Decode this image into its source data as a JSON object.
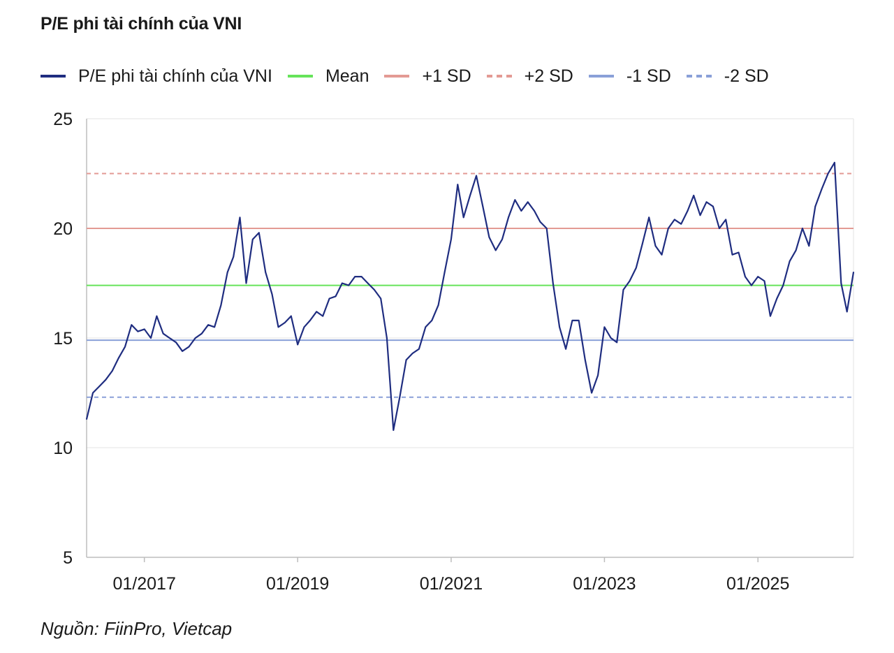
{
  "title": "P/E phi tài chính của VNI",
  "source": "Nguồn: FiinPro, Vietcap",
  "legend": [
    {
      "label": "P/E phi tài chính của VNI",
      "color": "#1f2d80",
      "style": "solid"
    },
    {
      "label": "Mean",
      "color": "#66e35a",
      "style": "solid"
    },
    {
      "label": "+1 SD",
      "color": "#e39a94",
      "style": "solid"
    },
    {
      "label": "+2 SD",
      "color": "#e39a94",
      "style": "dashed"
    },
    {
      "label": "-1 SD",
      "color": "#8aa0d8",
      "style": "solid"
    },
    {
      "label": "-2 SD",
      "color": "#8aa0d8",
      "style": "dashed"
    }
  ],
  "chart_data": {
    "type": "line",
    "title": "P/E phi tài chính của VNI",
    "ylim": [
      5,
      25
    ],
    "y_ticks": [
      5,
      10,
      15,
      20,
      25
    ],
    "xlim": [
      "2016-04",
      "2026-04"
    ],
    "x_ticks": [
      "01/2017",
      "01/2019",
      "01/2021",
      "01/2023",
      "01/2025"
    ],
    "x_tick_dates": [
      "2017-01",
      "2019-01",
      "2021-01",
      "2023-01",
      "2025-01"
    ],
    "grid": "horizontal",
    "legend_position": "top",
    "reference_lines": [
      {
        "name": "Mean",
        "value": 17.4,
        "color": "#66e35a",
        "style": "solid"
      },
      {
        "name": "+1 SD",
        "value": 20.0,
        "color": "#e39a94",
        "style": "solid"
      },
      {
        "name": "+2 SD",
        "value": 22.5,
        "color": "#e39a94",
        "style": "dashed"
      },
      {
        "name": "-1 SD",
        "value": 14.9,
        "color": "#8aa0d8",
        "style": "solid"
      },
      {
        "name": "-2 SD",
        "value": 12.3,
        "color": "#8aa0d8",
        "style": "dashed"
      }
    ],
    "series": [
      {
        "name": "P/E phi tài chính của VNI",
        "color": "#1f2d80",
        "points": [
          [
            "2016-04-01",
            11.3
          ],
          [
            "2016-05-01",
            12.5
          ],
          [
            "2016-06-01",
            12.8
          ],
          [
            "2016-07-01",
            13.1
          ],
          [
            "2016-08-01",
            13.5
          ],
          [
            "2016-09-01",
            14.1
          ],
          [
            "2016-10-01",
            14.6
          ],
          [
            "2016-11-01",
            15.6
          ],
          [
            "2016-12-01",
            15.3
          ],
          [
            "2017-01-01",
            15.4
          ],
          [
            "2017-02-01",
            15.0
          ],
          [
            "2017-03-01",
            16.0
          ],
          [
            "2017-04-01",
            15.2
          ],
          [
            "2017-05-01",
            15.0
          ],
          [
            "2017-06-01",
            14.8
          ],
          [
            "2017-07-01",
            14.4
          ],
          [
            "2017-08-01",
            14.6
          ],
          [
            "2017-09-01",
            15.0
          ],
          [
            "2017-10-01",
            15.2
          ],
          [
            "2017-11-01",
            15.6
          ],
          [
            "2017-12-01",
            15.5
          ],
          [
            "2018-01-01",
            16.5
          ],
          [
            "2018-02-01",
            18.0
          ],
          [
            "2018-03-01",
            18.7
          ],
          [
            "2018-04-01",
            20.5
          ],
          [
            "2018-05-01",
            17.5
          ],
          [
            "2018-06-01",
            19.5
          ],
          [
            "2018-07-01",
            19.8
          ],
          [
            "2018-08-01",
            18.0
          ],
          [
            "2018-09-01",
            17.0
          ],
          [
            "2018-10-01",
            15.5
          ],
          [
            "2018-11-01",
            15.7
          ],
          [
            "2018-12-01",
            16.0
          ],
          [
            "2019-01-01",
            14.7
          ],
          [
            "2019-02-01",
            15.5
          ],
          [
            "2019-03-01",
            15.8
          ],
          [
            "2019-04-01",
            16.2
          ],
          [
            "2019-05-01",
            16.0
          ],
          [
            "2019-06-01",
            16.8
          ],
          [
            "2019-07-01",
            16.9
          ],
          [
            "2019-08-01",
            17.5
          ],
          [
            "2019-09-01",
            17.4
          ],
          [
            "2019-10-01",
            17.8
          ],
          [
            "2019-11-01",
            17.8
          ],
          [
            "2019-12-01",
            17.5
          ],
          [
            "2020-01-01",
            17.2
          ],
          [
            "2020-02-01",
            16.8
          ],
          [
            "2020-03-01",
            15.0
          ],
          [
            "2020-04-01",
            10.8
          ],
          [
            "2020-05-01",
            12.3
          ],
          [
            "2020-06-01",
            14.0
          ],
          [
            "2020-07-01",
            14.3
          ],
          [
            "2020-08-01",
            14.5
          ],
          [
            "2020-09-01",
            15.5
          ],
          [
            "2020-10-01",
            15.8
          ],
          [
            "2020-11-01",
            16.5
          ],
          [
            "2020-12-01",
            18.0
          ],
          [
            "2021-01-01",
            19.5
          ],
          [
            "2021-02-01",
            22.0
          ],
          [
            "2021-03-01",
            20.5
          ],
          [
            "2021-04-01",
            21.5
          ],
          [
            "2021-05-01",
            22.4
          ],
          [
            "2021-06-01",
            21.0
          ],
          [
            "2021-07-01",
            19.6
          ],
          [
            "2021-08-01",
            19.0
          ],
          [
            "2021-09-01",
            19.5
          ],
          [
            "2021-10-01",
            20.5
          ],
          [
            "2021-11-01",
            21.3
          ],
          [
            "2021-12-01",
            20.8
          ],
          [
            "2022-01-01",
            21.2
          ],
          [
            "2022-02-01",
            20.8
          ],
          [
            "2022-03-01",
            20.3
          ],
          [
            "2022-04-01",
            20.0
          ],
          [
            "2022-05-01",
            17.5
          ],
          [
            "2022-06-01",
            15.5
          ],
          [
            "2022-07-01",
            14.5
          ],
          [
            "2022-08-01",
            15.8
          ],
          [
            "2022-09-01",
            15.8
          ],
          [
            "2022-10-01",
            14.0
          ],
          [
            "2022-11-01",
            12.5
          ],
          [
            "2022-12-01",
            13.3
          ],
          [
            "2023-01-01",
            15.5
          ],
          [
            "2023-02-01",
            15.0
          ],
          [
            "2023-03-01",
            14.8
          ],
          [
            "2023-04-01",
            17.2
          ],
          [
            "2023-05-01",
            17.6
          ],
          [
            "2023-06-01",
            18.2
          ],
          [
            "2023-07-01",
            19.3
          ],
          [
            "2023-08-01",
            20.5
          ],
          [
            "2023-09-01",
            19.2
          ],
          [
            "2023-10-01",
            18.8
          ],
          [
            "2023-11-01",
            20.0
          ],
          [
            "2023-12-01",
            20.4
          ],
          [
            "2024-01-01",
            20.2
          ],
          [
            "2024-02-01",
            20.8
          ],
          [
            "2024-03-01",
            21.5
          ],
          [
            "2024-04-01",
            20.6
          ],
          [
            "2024-05-01",
            21.2
          ],
          [
            "2024-06-01",
            21.0
          ],
          [
            "2024-07-01",
            20.0
          ],
          [
            "2024-08-01",
            20.4
          ],
          [
            "2024-09-01",
            18.8
          ],
          [
            "2024-10-01",
            18.9
          ],
          [
            "2024-11-01",
            17.8
          ],
          [
            "2024-12-01",
            17.4
          ],
          [
            "2025-01-01",
            17.8
          ],
          [
            "2025-02-01",
            17.6
          ],
          [
            "2025-03-01",
            16.0
          ],
          [
            "2025-04-01",
            16.8
          ],
          [
            "2025-05-01",
            17.4
          ],
          [
            "2025-06-01",
            18.5
          ],
          [
            "2025-07-01",
            19.0
          ],
          [
            "2025-08-01",
            20.0
          ],
          [
            "2025-09-01",
            19.2
          ],
          [
            "2025-10-01",
            21.0
          ],
          [
            "2025-11-01",
            21.8
          ],
          [
            "2025-12-01",
            22.5
          ],
          [
            "2026-01-01",
            23.0
          ],
          [
            "2026-02-01",
            17.5
          ],
          [
            "2026-03-01",
            16.2
          ],
          [
            "2026-04-01",
            18.0
          ]
        ]
      }
    ]
  }
}
